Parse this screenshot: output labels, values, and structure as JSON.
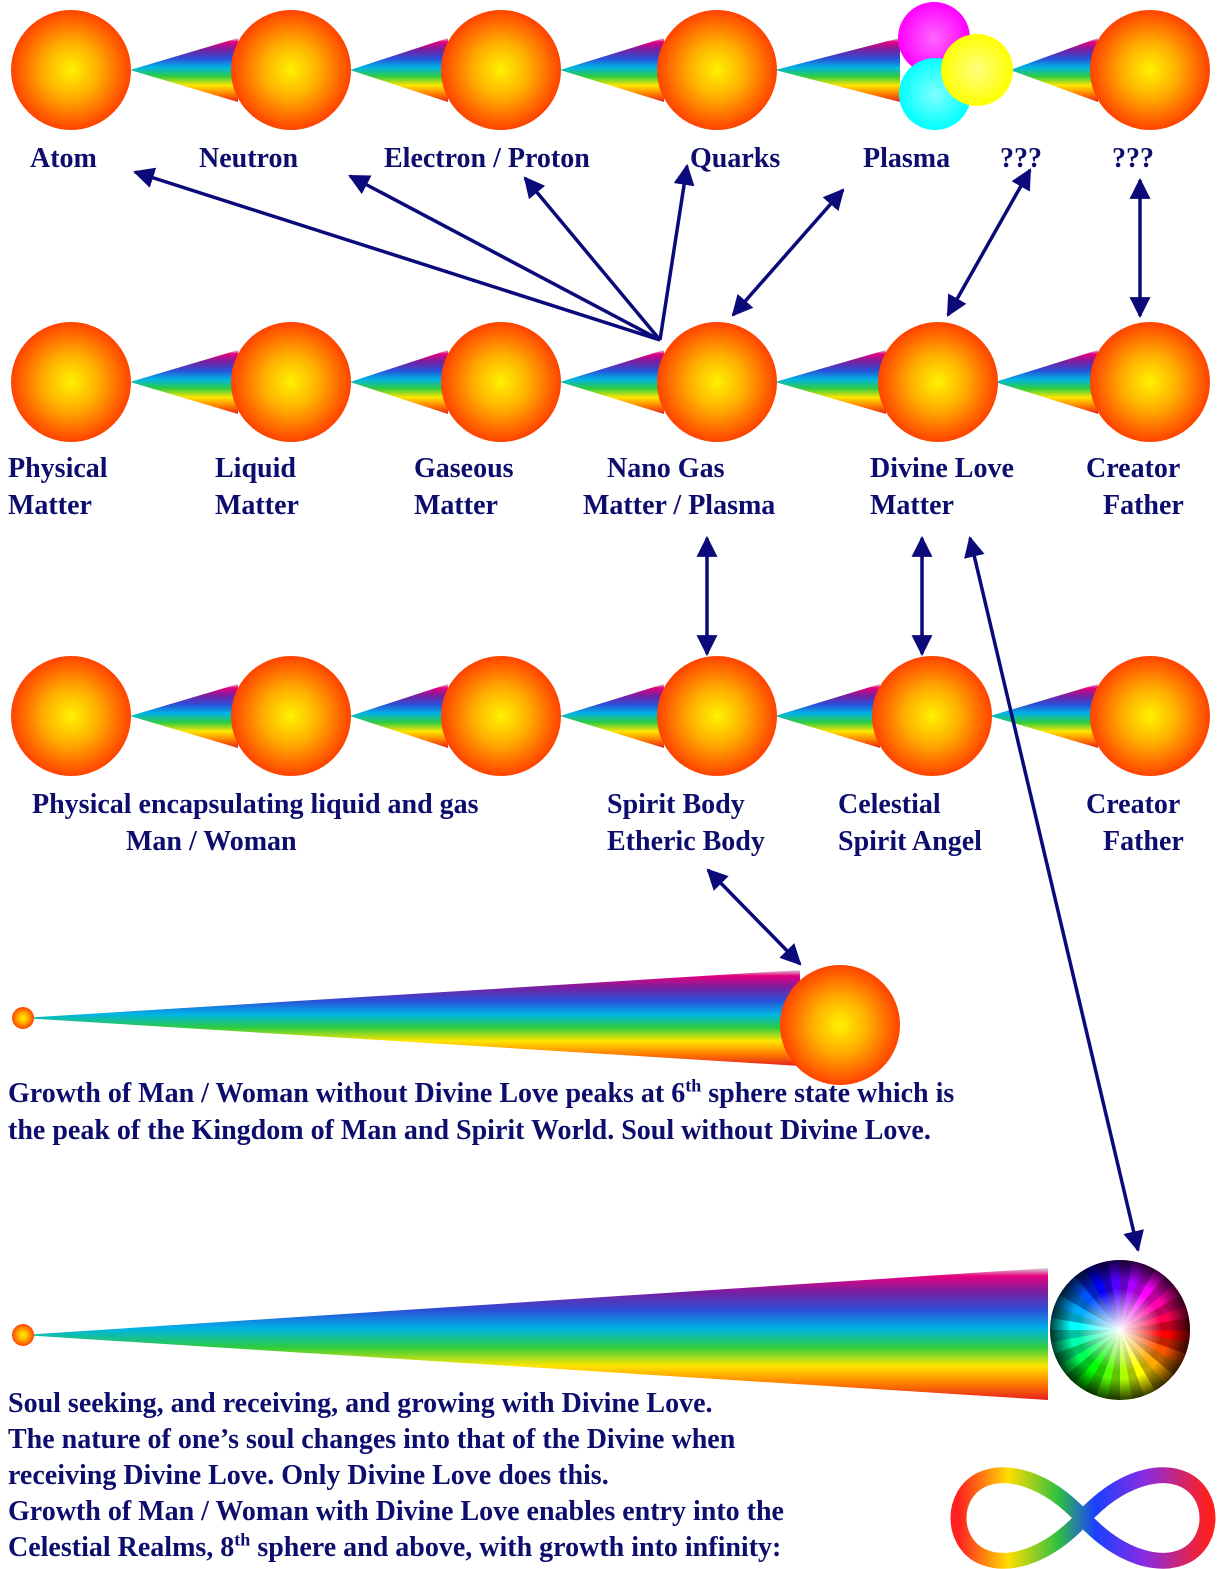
{
  "colors": {
    "text": "#0d0d6e",
    "arrow": "#0a0a7a",
    "sphere_core": "#ffee00",
    "sphere_edge": "#ff4a00"
  },
  "row1_labels": [
    "Atom",
    "Neutron",
    "Electron / Proton",
    "Quarks",
    "Plasma",
    "???",
    "???"
  ],
  "row2_labels": [
    [
      "Physical",
      "Matter"
    ],
    [
      "Liquid",
      "Matter"
    ],
    [
      "Gaseous",
      "Matter"
    ],
    [
      "Nano Gas",
      "Matter / Plasma"
    ],
    [
      "Divine Love",
      "Matter"
    ],
    [
      "Creator",
      "Father"
    ]
  ],
  "row3_labels": [
    [
      "Physical encapsulating liquid and gas",
      "Man / Woman"
    ],
    [
      "Spirit Body",
      "Etheric Body"
    ],
    [
      "Celestial",
      "Spirit Angel"
    ],
    [
      "Creator",
      "Father"
    ]
  ],
  "para1": {
    "line1_a": "Growth of Man / Woman without Divine Love peaks at 6",
    "line1_sup": "th",
    "line1_b": " sphere state which is",
    "line2": "the peak of the Kingdom of Man and Spirit World.  Soul without Divine Love."
  },
  "para2": {
    "line1": "Soul seeking, and receiving, and growing with Divine Love.",
    "line2": "The nature of one’s soul changes into that of the Divine when",
    "line3": "receiving Divine Love.  Only Divine Love does this.",
    "line4": "Growth of Man / Woman with Divine Love enables entry into the",
    "line5_a": "Celestial Realms, 8",
    "line5_sup": "th",
    "line5_b": " sphere and above, with growth into infinity:"
  },
  "icons": [
    "sphere-icon",
    "rainbow-cone-icon",
    "plasma-cmy-icon",
    "color-wheel-icon",
    "infinity-icon",
    "arrow-icon"
  ]
}
